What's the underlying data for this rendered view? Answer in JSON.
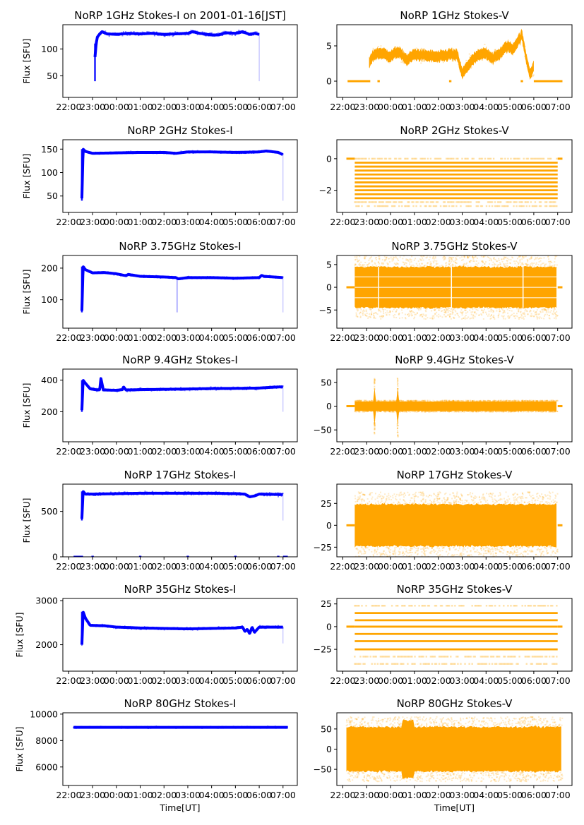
{
  "figure": {
    "x_tick_labels": [
      "22:00",
      "23:00",
      "00:00",
      "01:00",
      "02:00",
      "03:00",
      "04:00",
      "05:00",
      "06:00",
      "07:00"
    ],
    "ylabel": "Flux [SFU]",
    "xlabel": "Time[UT]",
    "colors": {
      "stokes_i": "#0000ff",
      "stokes_v": "#ffa500"
    }
  },
  "chart_data": [
    {
      "type": "scatter",
      "title": "NoRP 1GHz Stokes-I on 2001-01-16[JST]",
      "ylabel": "Flux [SFU]",
      "xlabel": "",
      "xlim_hours": [
        21.75,
        31.6
      ],
      "ylim": [
        10,
        145
      ],
      "yticks": [
        50,
        100
      ],
      "series": [
        {
          "name": "Stokes-I",
          "color": "#0000ff",
          "x_hours": [
            23.1,
            23.15,
            23.2,
            23.3,
            23.4,
            23.6,
            24.0,
            24.5,
            25.0,
            25.5,
            26.0,
            26.5,
            27.0,
            27.2,
            27.5,
            28.0,
            28.3,
            28.6,
            29.0,
            29.3,
            29.6,
            29.8,
            30.0
          ],
          "y": [
            85,
            110,
            122,
            128,
            132,
            128,
            127,
            129,
            128,
            129,
            127,
            128,
            129,
            132,
            129,
            126,
            126,
            130,
            129,
            132,
            127,
            129,
            127
          ],
          "outlier_min": 40,
          "spread": 3
        }
      ]
    },
    {
      "type": "scatter",
      "title": "NoRP 1GHz Stokes-V",
      "ylabel": "",
      "xlabel": "",
      "xlim_hours": [
        21.75,
        31.6
      ],
      "ylim": [
        -2.3,
        8
      ],
      "yticks": [
        0,
        5
      ],
      "series": [
        {
          "name": "Stokes-V",
          "color": "#ffa500",
          "x_hours": [
            23.1,
            23.3,
            23.6,
            24.0,
            24.3,
            24.7,
            25.0,
            25.5,
            26.0,
            26.5,
            26.8,
            27.0,
            27.3,
            27.6,
            28.0,
            28.3,
            28.6,
            28.9,
            29.1,
            29.3,
            29.5,
            29.7,
            29.85,
            30.0
          ],
          "y": [
            2.5,
            3.8,
            4.0,
            3.5,
            4.2,
            3.0,
            3.8,
            3.6,
            3.4,
            3.8,
            3.6,
            1.0,
            2.5,
            3.5,
            4.0,
            3.2,
            4.0,
            5.0,
            4.5,
            5.5,
            6.5,
            3.0,
            1.0,
            2.0
          ],
          "band": 1.5,
          "zero_segments_hours": [
            [
              22.2,
              23.15
            ],
            [
              23.45,
              23.55
            ],
            [
              26.45,
              26.55
            ],
            [
              29.45,
              29.55
            ],
            [
              30.0,
              31.2
            ]
          ]
        }
      ]
    },
    {
      "type": "scatter",
      "title": "NoRP 2GHz Stokes-I",
      "ylabel": "Flux [SFU]",
      "xlabel": "",
      "xlim_hours": [
        21.75,
        31.6
      ],
      "ylim": [
        15,
        170
      ],
      "yticks": [
        50,
        100,
        150
      ],
      "series": [
        {
          "name": "Stokes-I",
          "color": "#0000ff",
          "x_hours": [
            22.55,
            22.6,
            22.7,
            23.0,
            24.0,
            25.0,
            26.0,
            26.5,
            27.0,
            28.0,
            29.0,
            30.0,
            30.3,
            30.8,
            31.0
          ],
          "y": [
            45,
            150,
            145,
            141,
            142,
            143,
            143,
            141,
            144,
            144,
            143,
            144,
            146,
            143,
            138
          ],
          "outlier_min": 40,
          "spread": 2
        }
      ]
    },
    {
      "type": "scatter",
      "title": "NoRP 2GHz Stokes-V",
      "ylabel": "",
      "xlabel": "",
      "xlim_hours": [
        21.75,
        31.6
      ],
      "ylim": [
        -3.4,
        1.2
      ],
      "yticks": [
        -2,
        0
      ],
      "series": [
        {
          "name": "Stokes-V",
          "color": "#ffa500",
          "x_hours": [
            22.5,
            31.0
          ],
          "levels": [
            0.0,
            -0.25,
            -0.5,
            -0.75,
            -1.0,
            -1.25,
            -1.5,
            -1.75,
            -2.0,
            -2.25,
            -2.5,
            -2.75,
            -3.0
          ],
          "zero_segments_hours": [
            [
              22.15,
              22.5
            ],
            [
              31.0,
              31.2
            ]
          ]
        }
      ]
    },
    {
      "type": "scatter",
      "title": "NoRP 3.75GHz Stokes-I",
      "ylabel": "Flux [SFU]",
      "xlabel": "",
      "xlim_hours": [
        21.75,
        31.6
      ],
      "ylim": [
        10,
        240
      ],
      "yticks": [
        100,
        200
      ],
      "series": [
        {
          "name": "Stokes-I",
          "color": "#0000ff",
          "x_hours": [
            22.55,
            22.6,
            22.7,
            23.0,
            23.5,
            24.0,
            24.4,
            24.5,
            25.0,
            26.0,
            26.5,
            26.6,
            27.0,
            28.0,
            29.0,
            30.0,
            30.1,
            30.2,
            31.0
          ],
          "y": [
            65,
            205,
            195,
            185,
            186,
            182,
            176,
            180,
            174,
            172,
            170,
            166,
            170,
            170,
            168,
            170,
            177,
            174,
            170
          ],
          "outlier_min": 60,
          "spread": 3
        }
      ]
    },
    {
      "type": "scatter",
      "title": "NoRP 3.75GHz Stokes-V",
      "ylabel": "",
      "xlabel": "",
      "xlim_hours": [
        21.75,
        31.6
      ],
      "ylim": [
        -9,
        7
      ],
      "yticks": [
        -5,
        0,
        5
      ],
      "series": [
        {
          "name": "Stokes-V",
          "color": "#ffa500",
          "x_hours": [
            22.5,
            31.0
          ],
          "band": 4.5,
          "sparse_extent": 7,
          "zero_segments_hours": [
            [
              22.15,
              22.5
            ],
            [
              31.0,
              31.2
            ]
          ]
        }
      ]
    },
    {
      "type": "scatter",
      "title": "NoRP 9.4GHz Stokes-I",
      "ylabel": "Flux [SFU]",
      "xlabel": "",
      "xlim_hours": [
        21.75,
        31.6
      ],
      "ylim": [
        10,
        470
      ],
      "yticks": [
        200,
        400
      ],
      "series": [
        {
          "name": "Stokes-I",
          "color": "#0000ff",
          "x_hours": [
            22.55,
            22.6,
            22.7,
            22.9,
            23.2,
            23.3,
            23.35,
            23.45,
            24.0,
            24.25,
            24.3,
            24.4,
            25.0,
            26.0,
            27.0,
            28.0,
            29.0,
            30.0,
            30.5,
            31.0
          ],
          "y": [
            210,
            400,
            380,
            345,
            338,
            340,
            410,
            338,
            336,
            340,
            358,
            338,
            340,
            342,
            344,
            347,
            348,
            350,
            355,
            358
          ],
          "outlier_min": 200,
          "spread": 8
        }
      ]
    },
    {
      "type": "scatter",
      "title": "NoRP 9.4GHz Stokes-V",
      "ylabel": "",
      "xlabel": "",
      "xlim_hours": [
        21.75,
        31.6
      ],
      "ylim": [
        -75,
        78
      ],
      "yticks": [
        -50,
        0,
        50
      ],
      "series": [
        {
          "name": "Stokes-V",
          "color": "#ffa500",
          "x_hours": [
            22.5,
            31.0
          ],
          "band": 10,
          "spikes_hours": [
            23.33,
            24.3
          ],
          "spike_extent": 65,
          "zero_segments_hours": [
            [
              22.15,
              22.5
            ],
            [
              31.0,
              31.2
            ]
          ]
        }
      ]
    },
    {
      "type": "scatter",
      "title": "NoRP 17GHz Stokes-I",
      "ylabel": "Flux [SFU]",
      "xlabel": "",
      "xlim_hours": [
        21.75,
        31.6
      ],
      "ylim": [
        0,
        800
      ],
      "yticks": [
        0,
        500
      ],
      "series": [
        {
          "name": "Stokes-I",
          "color": "#0000ff",
          "x_hours": [
            22.55,
            22.6,
            22.7,
            23.0,
            24.0,
            25.0,
            26.0,
            27.0,
            28.0,
            29.0,
            29.4,
            29.6,
            29.8,
            30.0,
            31.0
          ],
          "y": [
            420,
            720,
            690,
            690,
            695,
            700,
            700,
            700,
            700,
            695,
            690,
            660,
            670,
            690,
            685
          ],
          "outlier_min": 400,
          "spread": 15,
          "zero_segments_hours": [
            [
              22.2,
              22.6
            ],
            [
              22.95,
              23.05
            ],
            [
              24.95,
              25.05
            ],
            [
              26.95,
              27.05
            ],
            [
              28.95,
              29.05
            ],
            [
              30.75,
              30.85
            ],
            [
              31.0,
              31.2
            ]
          ]
        }
      ]
    },
    {
      "type": "scatter",
      "title": "NoRP 17GHz Stokes-V",
      "ylabel": "",
      "xlabel": "",
      "xlim_hours": [
        21.75,
        31.6
      ],
      "ylim": [
        -36,
        47
      ],
      "yticks": [
        -25,
        0,
        25
      ],
      "series": [
        {
          "name": "Stokes-V",
          "color": "#ffa500",
          "x_hours": [
            22.5,
            31.0
          ],
          "band": 24,
          "sparse_extent": 38,
          "zero_segments_hours": [
            [
              22.15,
              22.5
            ],
            [
              31.0,
              31.2
            ]
          ]
        }
      ]
    },
    {
      "type": "scatter",
      "title": "NoRP 35GHz Stokes-I",
      "ylabel": "Flux [SFU]",
      "xlabel": "",
      "xlim_hours": [
        21.75,
        31.6
      ],
      "ylim": [
        1400,
        3050
      ],
      "yticks": [
        2000,
        3000
      ],
      "series": [
        {
          "name": "Stokes-I",
          "color": "#0000ff",
          "x_hours": [
            22.55,
            22.6,
            22.7,
            22.9,
            23.5,
            24.0,
            25.0,
            26.0,
            27.0,
            28.0,
            29.0,
            29.3,
            29.4,
            29.5,
            29.6,
            29.7,
            29.8,
            30.0,
            31.0
          ],
          "y": [
            2000,
            2750,
            2600,
            2440,
            2430,
            2400,
            2380,
            2370,
            2360,
            2370,
            2380,
            2400,
            2300,
            2350,
            2250,
            2400,
            2280,
            2400,
            2400
          ],
          "outlier_min": 2030,
          "spread": 25
        }
      ]
    },
    {
      "type": "scatter",
      "title": "NoRP 35GHz Stokes-V",
      "ylabel": "",
      "xlabel": "",
      "xlim_hours": [
        21.75,
        31.6
      ],
      "ylim": [
        -49,
        31
      ],
      "yticks": [
        -25,
        0,
        25
      ],
      "series": [
        {
          "name": "Stokes-V",
          "color": "#ffa500",
          "x_hours": [
            22.5,
            31.0
          ],
          "levels": [
            23,
            15,
            7,
            0,
            -8,
            -16,
            -25,
            -33,
            -41
          ],
          "zero_segments_hours": [
            [
              22.15,
              22.5
            ],
            [
              31.0,
              31.2
            ]
          ]
        }
      ]
    },
    {
      "type": "scatter",
      "title": "NoRP 80GHz Stokes-I",
      "ylabel": "Flux [SFU]",
      "xlabel": "Time[UT]",
      "xlim_hours": [
        21.75,
        31.6
      ],
      "ylim": [
        4600,
        10100
      ],
      "yticks": [
        6000,
        8000,
        10000
      ],
      "series": [
        {
          "name": "Stokes-I",
          "color": "#0000ff",
          "x_hours": [
            22.2,
            31.2
          ],
          "y": [
            9000,
            9000
          ],
          "spread": 60
        }
      ]
    },
    {
      "type": "scatter",
      "title": "NoRP 80GHz Stokes-V",
      "ylabel": "",
      "xlabel": "Time[UT]",
      "xlim_hours": [
        21.75,
        31.6
      ],
      "ylim": [
        -90,
        90
      ],
      "yticks": [
        -50,
        0,
        50
      ],
      "series": [
        {
          "name": "Stokes-V",
          "color": "#ffa500",
          "x_hours": [
            22.15,
            31.2
          ],
          "band": 55,
          "sparse_extent": 80,
          "burst_hours": [
            24.5,
            25.0
          ]
        }
      ]
    }
  ]
}
